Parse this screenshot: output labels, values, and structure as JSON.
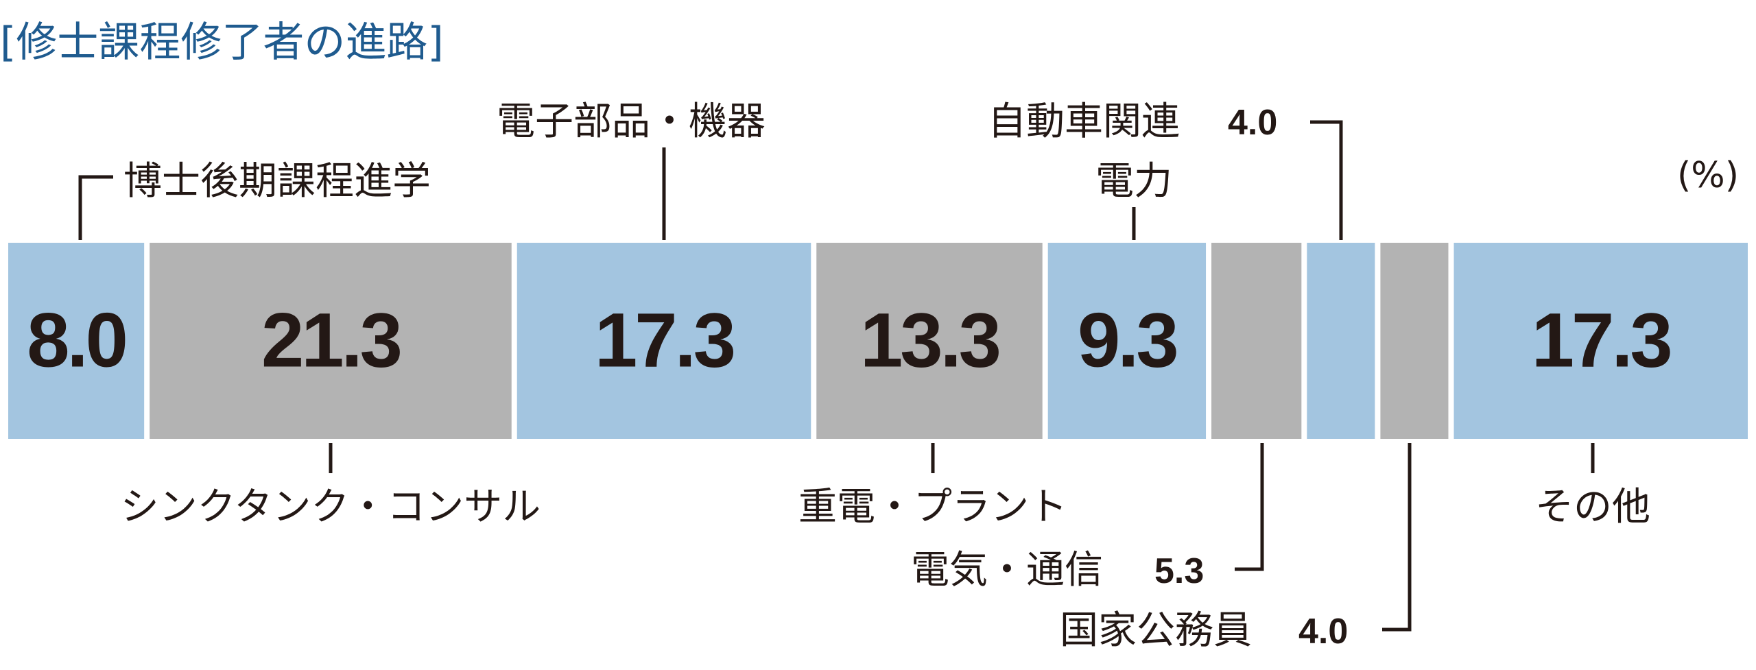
{
  "chart_data": {
    "type": "bar",
    "orientation": "horizontal-stacked-100",
    "title": "[修士課程修了者の進路]",
    "unit": "(%)",
    "series": [
      {
        "name": "博士後期課程進学",
        "value": 8.0,
        "color": "#a3c5e0",
        "label_shown": "8.0"
      },
      {
        "name": "シンクタンク・コンサル",
        "value": 21.3,
        "color": "#b3b3b3",
        "label_shown": "21.3"
      },
      {
        "name": "電子部品・機器",
        "value": 17.3,
        "color": "#a3c5e0",
        "label_shown": "17.3"
      },
      {
        "name": "重電・プラント",
        "value": 13.3,
        "color": "#b3b3b3",
        "label_shown": "13.3"
      },
      {
        "name": "電力",
        "value": 9.3,
        "color": "#a3c5e0",
        "label_shown": "9.3"
      },
      {
        "name": "電気・通信",
        "value": 5.3,
        "color": "#b3b3b3",
        "label_shown": ""
      },
      {
        "name": "自動車関連",
        "value": 4.0,
        "color": "#a3c5e0",
        "label_shown": ""
      },
      {
        "name": "国家公務員",
        "value": 4.0,
        "color": "#b3b3b3",
        "label_shown": ""
      },
      {
        "name": "その他",
        "value": 17.3,
        "color": "#a3c5e0",
        "label_shown": "17.3"
      }
    ],
    "callout_values": {
      "自動車関連": "4.0",
      "電気・通信": "5.3",
      "国家公務員": "4.0"
    }
  },
  "colors": {
    "title": "#1f5b8f",
    "text": "#231815",
    "blue_segment": "#a3c5e0",
    "gray_segment": "#b3b3b3"
  }
}
